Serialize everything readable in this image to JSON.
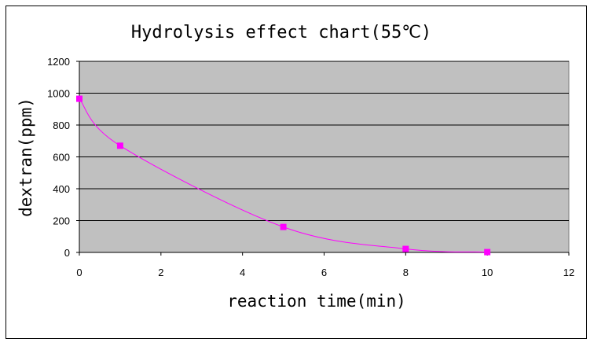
{
  "chart_data": {
    "type": "scatter",
    "title": "Hydrolysis effect chart(55℃)",
    "xlabel": "reaction time(min)",
    "ylabel": "dextran(ppm)",
    "xlim": [
      0,
      12
    ],
    "ylim": [
      0,
      1200
    ],
    "xticks": [
      0,
      2,
      4,
      6,
      8,
      10,
      12
    ],
    "yticks": [
      0,
      200,
      400,
      600,
      800,
      1000,
      1200
    ],
    "grid": "horizontal",
    "plot_background": "#c0c0c0",
    "series": [
      {
        "x": [
          0,
          1,
          5,
          8,
          10
        ],
        "y": [
          965,
          670,
          160,
          22,
          2
        ],
        "color": "#ff00ff",
        "smooth": true
      }
    ]
  }
}
